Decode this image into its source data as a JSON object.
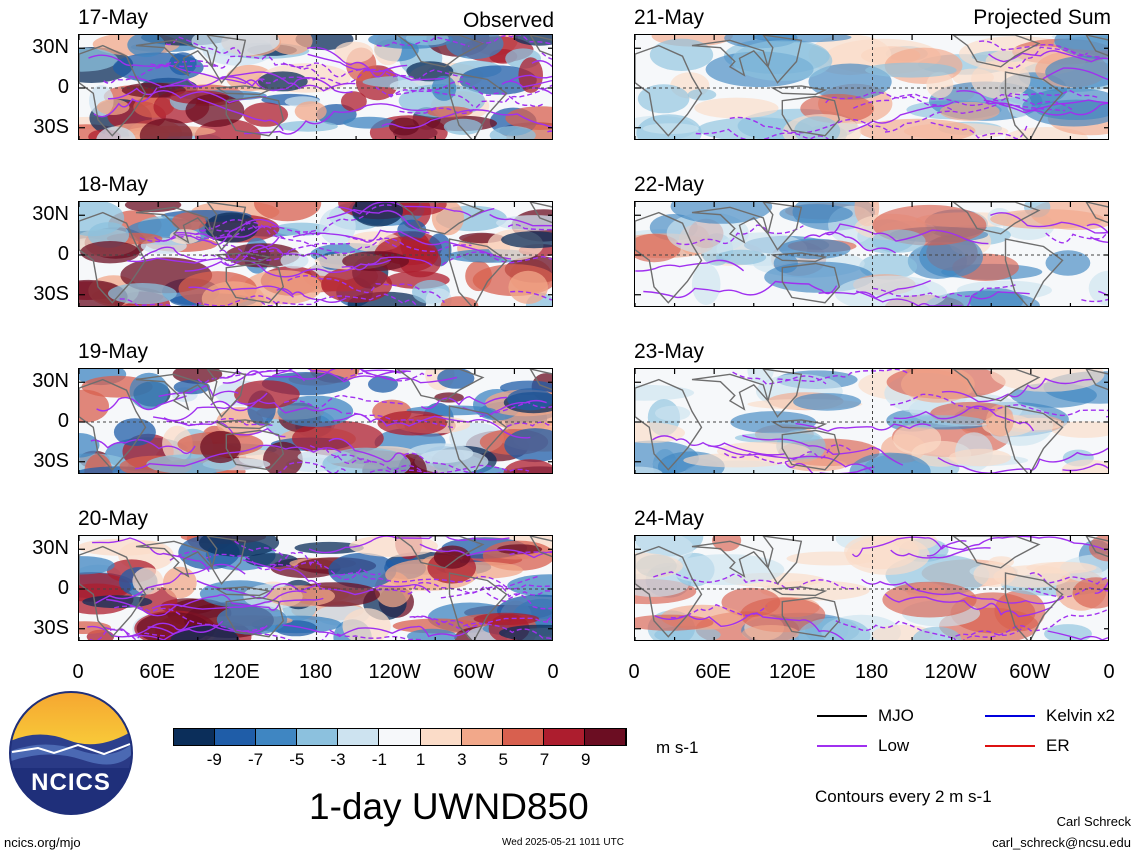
{
  "left_tag": "Observed",
  "right_tag": "Projected Sum",
  "left_dates": [
    "17-May",
    "18-May",
    "19-May",
    "20-May"
  ],
  "right_dates": [
    "21-May",
    "22-May",
    "23-May",
    "24-May"
  ],
  "lat_ticks": [
    "30N",
    "0",
    "30S"
  ],
  "lon_ticks": [
    "0",
    "60E",
    "120E",
    "180",
    "120W",
    "60W",
    "0"
  ],
  "colorbar": {
    "ticks": [
      "-9",
      "-7",
      "-5",
      "-3",
      "-1",
      "1",
      "3",
      "5",
      "7",
      "9"
    ],
    "unit": "m s-1",
    "colors": [
      "#0b2e5a",
      "#1f5da8",
      "#3f86c2",
      "#8cc1de",
      "#cde3f0",
      "#f6f8fa",
      "#fbdcc8",
      "#f2a88a",
      "#d8604f",
      "#ad1d2e",
      "#6b0d22"
    ]
  },
  "title": "1-day UWND850",
  "legend": {
    "items": [
      {
        "label": "MJO",
        "color": "#000000"
      },
      {
        "label": "Kelvin x2",
        "color": "#0000dd"
      },
      {
        "label": "Low",
        "color": "#a030f0"
      },
      {
        "label": "ER",
        "color": "#dd1111"
      }
    ],
    "contour_note": "Contours every 2 m s-1"
  },
  "logo_text": "NCICS",
  "footer": {
    "left": "ncics.org/mjo",
    "center": "Wed 2025-05-21 1011 UTC",
    "author": "Carl Schreck",
    "email": "carl_schreck@ncsu.edu"
  }
}
